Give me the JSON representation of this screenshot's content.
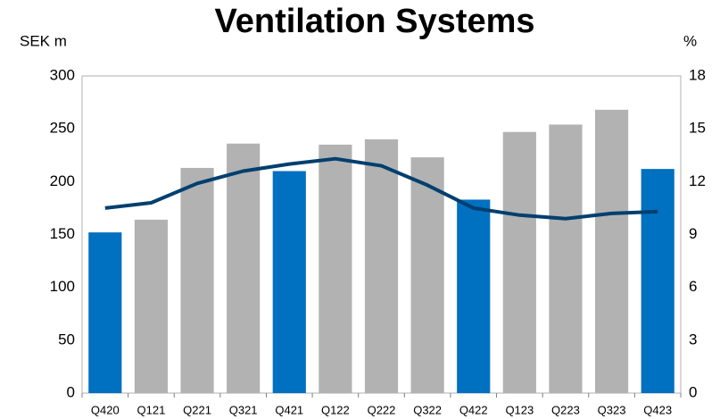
{
  "chart_data": {
    "type": "bar-line",
    "title": "Ventilation Systems",
    "y_label": "SEK m",
    "y2_label": "%",
    "categories": [
      "Q420",
      "Q121",
      "Q221",
      "Q321",
      "Q421",
      "Q122",
      "Q222",
      "Q322",
      "Q422",
      "Q123",
      "Q223",
      "Q323",
      "Q423"
    ],
    "series": [
      {
        "type": "bar",
        "values": [
          152,
          164,
          213,
          236,
          210,
          235,
          240,
          223,
          183,
          247,
          254,
          268,
          212
        ],
        "colors": [
          "#0070c0",
          "#b2b2b2",
          "#b2b2b2",
          "#b2b2b2",
          "#0070c0",
          "#b2b2b2",
          "#b2b2b2",
          "#b2b2b2",
          "#0070c0",
          "#b2b2b2",
          "#b2b2b2",
          "#b2b2b2",
          "#0070c0"
        ]
      },
      {
        "type": "line",
        "axis": "y2",
        "color": "#003f6e",
        "values": [
          10.5,
          10.8,
          11.9,
          12.6,
          13.0,
          13.3,
          12.9,
          11.8,
          10.5,
          10.1,
          9.9,
          10.2,
          10.3
        ]
      }
    ],
    "ylim": [
      0,
      300
    ],
    "yticks": [
      0,
      50,
      100,
      150,
      200,
      250,
      300
    ],
    "y2lim": [
      0,
      18
    ],
    "y2ticks": [
      0,
      3,
      6,
      9,
      12,
      15,
      18
    ],
    "grid": false
  }
}
